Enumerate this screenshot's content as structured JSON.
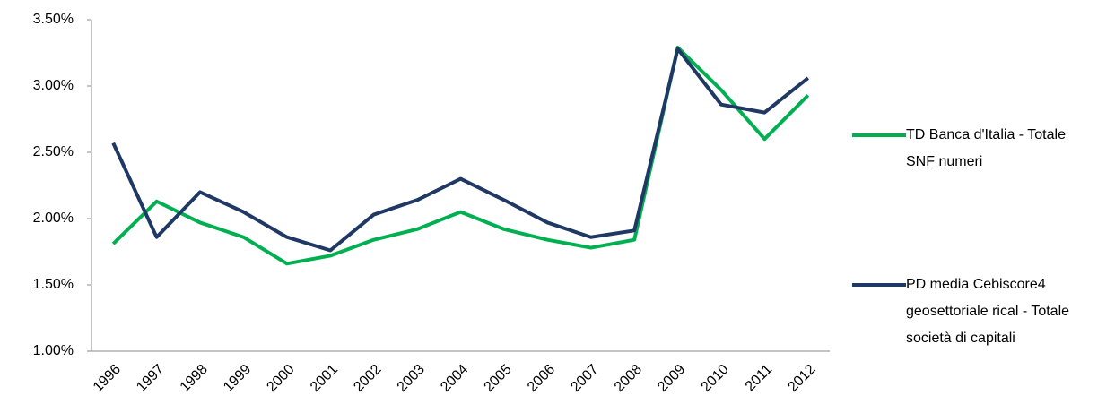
{
  "chart_data": {
    "type": "line",
    "categories": [
      "1996",
      "1997",
      "1998",
      "1999",
      "2000",
      "2001",
      "2002",
      "2003",
      "2004",
      "2005",
      "2006",
      "2007",
      "2008",
      "2009",
      "2010",
      "2011",
      "2012"
    ],
    "series": [
      {
        "name": "TD Banca d'Italia - Totale SNF numeri",
        "color": "#00b050",
        "values": [
          1.81,
          2.13,
          1.97,
          1.86,
          1.66,
          1.72,
          1.84,
          1.92,
          2.05,
          1.92,
          1.84,
          1.78,
          1.84,
          3.29,
          2.97,
          2.6,
          2.93
        ]
      },
      {
        "name": "PD media Cebiscore4 geosettoriale rical - Totale società di capitali",
        "color": "#1f3864",
        "values": [
          2.57,
          1.86,
          2.2,
          2.05,
          1.86,
          1.76,
          2.03,
          2.14,
          2.3,
          2.14,
          1.97,
          1.86,
          1.91,
          3.28,
          2.86,
          2.8,
          3.06
        ]
      }
    ],
    "ylim": [
      1.0,
      3.5
    ],
    "yticks": [
      {
        "value": 1.0,
        "label": "1.00%"
      },
      {
        "value": 1.5,
        "label": "1.50%"
      },
      {
        "value": 2.0,
        "label": "2.00%"
      },
      {
        "value": 2.5,
        "label": "2.50%"
      },
      {
        "value": 3.0,
        "label": "3.00%"
      },
      {
        "value": 3.5,
        "label": "3.50%"
      }
    ],
    "grid": false,
    "legend": "right"
  }
}
